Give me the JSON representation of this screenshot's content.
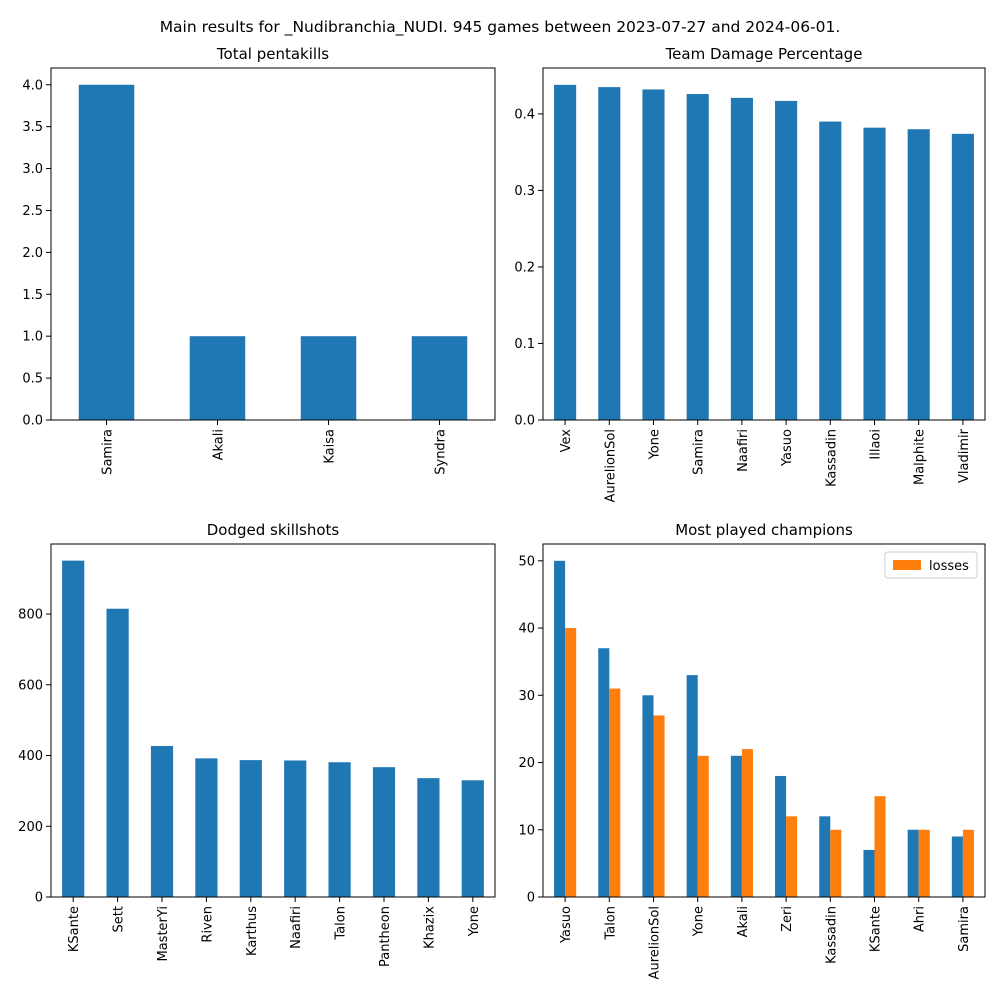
{
  "suptitle": "Main results for _Nudibranchia_NUDI. 945 games between 2023-07-27 and 2024-06-01.",
  "chart_data": [
    {
      "type": "bar",
      "title": "Total pentakills",
      "categories": [
        "Samira",
        "Akali",
        "Kaisa",
        "Syndra"
      ],
      "values": [
        4,
        1,
        1,
        1
      ],
      "ylim": [
        0,
        4.2
      ],
      "yticks": [
        0.0,
        0.5,
        1.0,
        1.5,
        2.0,
        2.5,
        3.0,
        3.5,
        4.0
      ],
      "tick_decimals": 1,
      "grid": false,
      "color": "#1f77b4"
    },
    {
      "type": "bar",
      "title": "Team Damage Percentage",
      "categories": [
        "Vex",
        "AurelionSol",
        "Yone",
        "Samira",
        "Naafiri",
        "Yasuo",
        "Kassadin",
        "Illaoi",
        "Malphite",
        "Vladimir"
      ],
      "values": [
        0.438,
        0.435,
        0.432,
        0.426,
        0.421,
        0.417,
        0.39,
        0.382,
        0.38,
        0.374
      ],
      "ylim": [
        0,
        0.46
      ],
      "yticks": [
        0.0,
        0.1,
        0.2,
        0.3,
        0.4
      ],
      "tick_decimals": 1,
      "grid": false,
      "color": "#1f77b4"
    },
    {
      "type": "bar",
      "title": "Dodged skillshots",
      "categories": [
        "KSante",
        "Sett",
        "MasterYi",
        "Riven",
        "Karthus",
        "Naafiri",
        "Talon",
        "Pantheon",
        "Khazix",
        "Yone"
      ],
      "values": [
        951,
        815,
        427,
        392,
        387,
        386,
        381,
        367,
        336,
        330
      ],
      "ylim": [
        0,
        998
      ],
      "yticks": [
        0,
        200,
        400,
        600,
        800
      ],
      "tick_decimals": 0,
      "grid": false,
      "color": "#1f77b4"
    },
    {
      "type": "bar",
      "title": "Most played champions",
      "categories": [
        "Yasuo",
        "Talon",
        "AurelionSol",
        "Yone",
        "Akali",
        "Zeri",
        "Kassadin",
        "KSante",
        "Ahri",
        "Samira"
      ],
      "series": [
        {
          "values": [
            50,
            37,
            30,
            33,
            21,
            18,
            12,
            7,
            10,
            9
          ],
          "color": "#1f77b4"
        },
        {
          "name": "losses",
          "values": [
            40,
            31,
            27,
            21,
            22,
            12,
            10,
            15,
            10,
            10
          ],
          "color": "#ff7f0e"
        }
      ],
      "ylim": [
        0,
        52.5
      ],
      "yticks": [
        0,
        10,
        20,
        30,
        40,
        50
      ],
      "tick_decimals": 0,
      "grid": false,
      "legend": "top-right"
    }
  ]
}
